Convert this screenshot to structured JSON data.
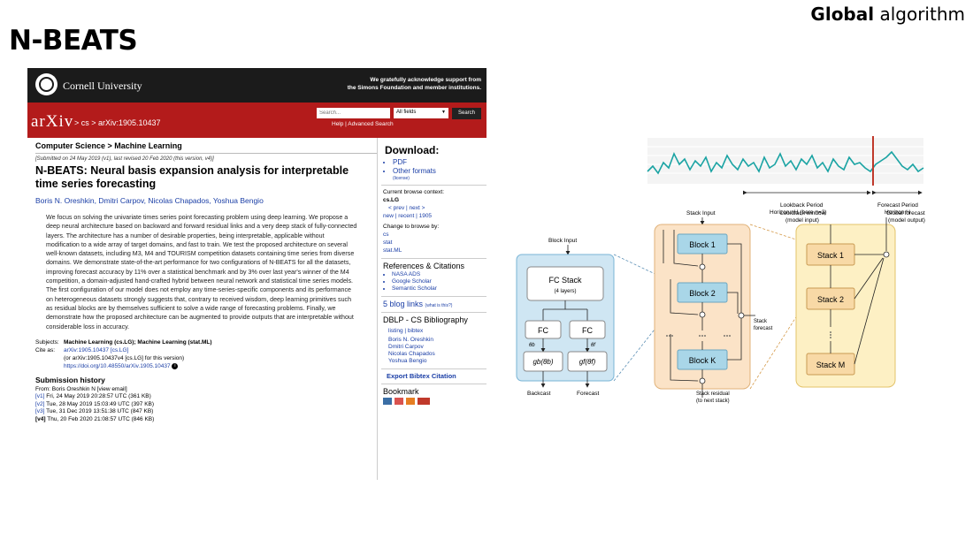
{
  "slide": {
    "title": "N-BEATS",
    "corner_bold": "Global",
    "corner_rest": " algorithm"
  },
  "arxiv": {
    "university": "Cornell University",
    "ack_line1": "We gratefully acknowledge support from",
    "ack_line2": "the Simons Foundation and member institutions.",
    "logo": "arXiv",
    "breadcrumb": "> cs > arXiv:1905.10437",
    "search_placeholder": "Search...",
    "fields_value": "All fields",
    "search_button": "Search",
    "help_links": "Help | Advanced Search",
    "category": "Computer Science > Machine Learning",
    "submitted": "[Submitted on 24 May 2019 (v1), last revised 20 Feb 2020 (this version, v4)]",
    "title": "N-BEATS: Neural basis expansion analysis for interpretable time series forecasting",
    "authors": "Boris N. Oreshkin, Dmitri Carpov, Nicolas Chapados, Yoshua Bengio",
    "abstract": "We focus on solving the univariate times series point forecasting problem using deep learning. We propose a deep neural architecture based on backward and forward residual links and a very deep stack of fully-connected layers. The architecture has a number of desirable properties, being interpretable, applicable without modification to a wide array of target domains, and fast to train. We test the proposed architecture on several well-known datasets, including M3, M4 and TOURISM competition datasets containing time series from diverse domains. We demonstrate state-of-the-art performance for two configurations of N-BEATS for all the datasets, improving forecast accuracy by 11% over a statistical benchmark and by 3% over last year's winner of the M4 competition, a domain-adjusted hand-crafted hybrid between neural network and statistical time series models. The first configuration of our model does not employ any time-series-specific components and its performance on heterogeneous datasets strongly suggests that, contrary to received wisdom, deep learning primitives such as residual blocks are by themselves sufficient to solve a wide range of forecasting problems. Finally, we demonstrate how the proposed architecture can be augmented to provide outputs that are interpretable without considerable loss in accuracy.",
    "subjects_label": "Subjects:",
    "subjects_value": "Machine Learning (cs.LG); Machine Learning (stat.ML)",
    "cite_label": "Cite as:",
    "cite_value": "arXiv:1905.10437 [cs.LG]",
    "cite_line2": "(or arXiv:1905.10437v4 [cs.LG] for this version)",
    "doi": "https://doi.org/10.48550/arXiv.1905.10437",
    "history_heading": "Submission history",
    "history_from": "From: Boris Oreshkin N [view email]",
    "history": [
      {
        "v": "[v1]",
        "text": " Fri, 24 May 2019 20:28:57 UTC (361 KB)"
      },
      {
        "v": "[v2]",
        "text": " Tue, 28 May 2019 15:03:49 UTC (397 KB)"
      },
      {
        "v": "[v3]",
        "text": " Tue, 31 Dec 2019 13:51:38 UTC (847 KB)"
      },
      {
        "v": "[v4]",
        "text": " Thu, 20 Feb 2020 21:08:57 UTC (846 KB)"
      }
    ],
    "sidebar": {
      "download": "Download:",
      "pdf": "PDF",
      "other_formats": "Other formats",
      "license": "(license)",
      "browse_context": "Current browse context:",
      "context_value": "cs.LG",
      "prev_next": "< prev   |   next >",
      "new_recent": "new | recent | 1905",
      "change_browse": "Change to browse by:",
      "browse_cs": "cs",
      "browse_stat": "stat",
      "browse_statml": "stat.ML",
      "refs_heading": "References & Citations",
      "refs": [
        "NASA ADS",
        "Google Scholar",
        "Semantic Scholar"
      ],
      "blog_links": "5 blog links",
      "whats_this": "(what is this?)",
      "dblp": "DBLP - CS Bibliography",
      "listing": "listing | bibtex",
      "dblp_authors": [
        "Boris N. Oreshkin",
        "Dmitri Carpov",
        "Nicolas Chapados",
        "Yoshua Bengio"
      ],
      "export": "Export Bibtex Citation",
      "bookmark": "Bookmark"
    }
  },
  "diagram": {
    "lookback_label": "Lookback Period",
    "lookback_label2": "Horizon nH (here n=3)",
    "forecast_label": "Forecast Period",
    "forecast_label2": "Horizon H",
    "block_input": "Block Input",
    "fc_stack": "FC Stack",
    "fc_layers": "(4 layers)",
    "fc": "FC",
    "theta_b": "θb",
    "theta_f": "θf",
    "g_b": "gb(θb)",
    "g_f": "gf(θf)",
    "backcast": "Backcast",
    "forecast": "Forecast",
    "stack_input": "Stack Input",
    "block1": "Block 1",
    "block2": "Block 2",
    "blockK": "Block K",
    "stack_forecast": "Stack",
    "stack_forecast2": "forecast",
    "stack_residual": "Stack residual",
    "stack_residual2": "(to next stack)",
    "lookback_window": "Lookback window",
    "model_input": "(model input)",
    "global_forecast": "Global forecast",
    "model_output": "(model output)",
    "stack1": "Stack 1",
    "stack2": "Stack 2",
    "stackM": "Stack M",
    "series_colors": {
      "line": "#1aa3a3",
      "forecast_bar": "#c0392b"
    }
  }
}
